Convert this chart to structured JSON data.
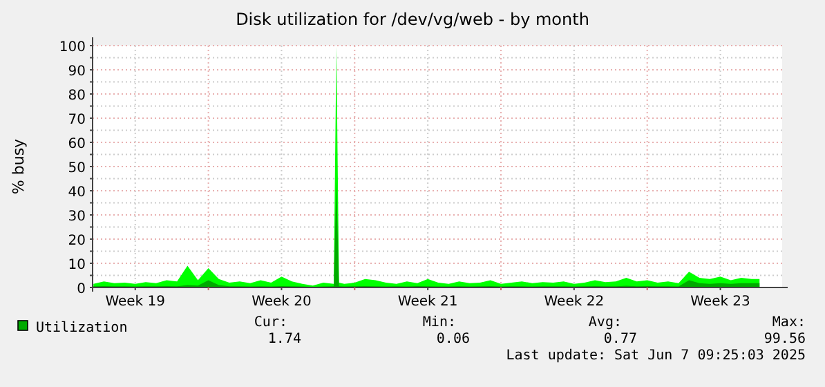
{
  "chart_data": {
    "type": "area",
    "title": "Disk utilization for /dev/vg/web - by month",
    "ylabel": "% busy",
    "x": [
      "2025-05-06T12:00",
      "2025-05-07T00:00",
      "2025-05-07T12:00",
      "2025-05-08T00:00",
      "2025-05-08T12:00",
      "2025-05-09T00:00",
      "2025-05-09T12:00",
      "2025-05-10T00:00",
      "2025-05-10T12:00",
      "2025-05-11T00:00",
      "2025-05-11T12:00",
      "2025-05-12T00:00",
      "2025-05-12T12:00",
      "2025-05-13T00:00",
      "2025-05-13T12:00",
      "2025-05-14T00:00",
      "2025-05-14T12:00",
      "2025-05-15T00:00",
      "2025-05-15T12:00",
      "2025-05-16T00:00",
      "2025-05-16T12:00",
      "2025-05-17T00:00",
      "2025-05-17T12:00",
      "2025-05-18T00:00",
      "2025-05-18T03:00",
      "2025-05-18T06:00",
      "2025-05-18T12:00",
      "2025-05-19T00:00",
      "2025-05-19T12:00",
      "2025-05-20T00:00",
      "2025-05-20T12:00",
      "2025-05-21T00:00",
      "2025-05-21T12:00",
      "2025-05-22T00:00",
      "2025-05-22T12:00",
      "2025-05-23T00:00",
      "2025-05-23T12:00",
      "2025-05-24T00:00",
      "2025-05-24T12:00",
      "2025-05-25T00:00",
      "2025-05-25T12:00",
      "2025-05-26T00:00",
      "2025-05-26T12:00",
      "2025-05-27T00:00",
      "2025-05-27T12:00",
      "2025-05-28T00:00",
      "2025-05-28T12:00",
      "2025-05-29T00:00",
      "2025-05-29T12:00",
      "2025-05-30T00:00",
      "2025-05-30T12:00",
      "2025-05-31T00:00",
      "2025-05-31T12:00",
      "2025-06-01T00:00",
      "2025-06-01T12:00",
      "2025-06-02T00:00",
      "2025-06-02T12:00",
      "2025-06-03T00:00",
      "2025-06-03T12:00",
      "2025-06-04T00:00",
      "2025-06-04T12:00",
      "2025-06-05T00:00",
      "2025-06-05T12:00",
      "2025-06-06T00:00",
      "2025-06-06T12:00",
      "2025-06-07T00:00",
      "2025-06-07T09:00"
    ],
    "series": [
      {
        "color": "#00ff00",
        "values": [
          1.5,
          2.5,
          1.8,
          2.0,
          1.5,
          2.2,
          1.8,
          3.0,
          2.5,
          9.0,
          3.0,
          8.0,
          3.5,
          2.0,
          2.5,
          1.8,
          3.0,
          2.0,
          4.5,
          2.5,
          1.5,
          0.8,
          2.0,
          1.5,
          99.56,
          2.0,
          1.5,
          2.0,
          3.5,
          3.0,
          2.0,
          1.5,
          2.5,
          1.8,
          3.5,
          2.0,
          1.5,
          2.5,
          1.8,
          2.0,
          3.0,
          1.5,
          2.0,
          2.5,
          1.8,
          2.2,
          2.0,
          2.5,
          1.5,
          2.0,
          3.0,
          2.2,
          2.5,
          4.0,
          2.5,
          3.0,
          2.0,
          2.5,
          1.8,
          6.5,
          4.0,
          3.5,
          4.5,
          3.0,
          4.0,
          3.5,
          3.5
        ]
      },
      {
        "name": "Utilization",
        "color": "#00aa00",
        "values": [
          0.5,
          0.6,
          0.5,
          0.5,
          0.4,
          0.5,
          0.5,
          0.6,
          0.5,
          1.0,
          0.8,
          3.0,
          1.0,
          0.5,
          0.5,
          0.4,
          0.5,
          0.4,
          0.6,
          0.5,
          0.4,
          0.3,
          0.4,
          0.5,
          44,
          0.5,
          0.4,
          0.5,
          0.6,
          0.5,
          0.4,
          0.5,
          0.4,
          0.6,
          0.5,
          0.4,
          0.4,
          0.5,
          0.4,
          0.5,
          0.6,
          0.4,
          0.5,
          0.5,
          0.4,
          0.5,
          0.5,
          0.5,
          0.4,
          0.5,
          0.6,
          0.5,
          0.5,
          0.7,
          0.5,
          0.6,
          0.5,
          0.5,
          0.4,
          3.0,
          1.8,
          1.5,
          1.8,
          1.5,
          1.8,
          1.8,
          1.8
        ]
      }
    ],
    "xlim": [
      "2025-05-06T11:00",
      "2025-06-08T11:00"
    ],
    "xticks": [
      {
        "value": "2025-05-08T12:00",
        "label": "Week 19"
      },
      {
        "value": "2025-05-12T00:00",
        "label": null
      },
      {
        "value": "2025-05-15T12:00",
        "label": "Week 20"
      },
      {
        "value": "2025-05-19T00:00",
        "label": null
      },
      {
        "value": "2025-05-22T12:00",
        "label": "Week 21"
      },
      {
        "value": "2025-05-26T00:00",
        "label": null
      },
      {
        "value": "2025-05-29T12:00",
        "label": "Week 22"
      },
      {
        "value": "2025-06-02T00:00",
        "label": null
      },
      {
        "value": "2025-06-05T12:00",
        "label": "Week 23"
      }
    ],
    "ylim": [
      0,
      100
    ],
    "yticks": [
      0,
      {
        "value": 5,
        "label": null
      },
      10,
      {
        "value": 15,
        "label": null
      },
      20,
      {
        "value": 25,
        "label": null
      },
      30,
      {
        "value": 35,
        "label": null
      },
      40,
      {
        "value": 45,
        "label": null
      },
      50,
      {
        "value": 55,
        "label": null
      },
      60,
      {
        "value": 65,
        "label": null
      },
      70,
      {
        "value": 75,
        "label": null
      },
      80,
      {
        "value": 85,
        "label": null
      },
      90,
      {
        "value": 95,
        "label": null
      },
      100
    ],
    "grid": true,
    "legend": "bottom left",
    "annotations": [
      "Cur:",
      "Min:",
      "Avg:",
      "Max:",
      "1.74",
      "0.06",
      "0.77",
      "99.56",
      "Last update: Sat Jun  7 09:25:03 2025"
    ]
  }
}
